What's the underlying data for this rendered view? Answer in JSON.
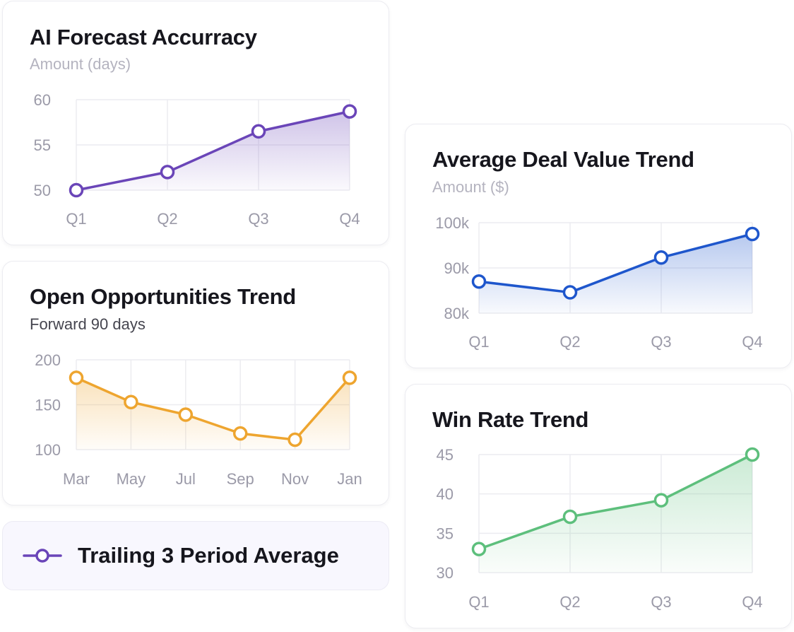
{
  "legend": {
    "label": "Trailing 3 Period Average",
    "color": "#6a45b8"
  },
  "chart_data": [
    {
      "id": "forecast",
      "type": "area",
      "title": "AI Forecast Accurracy",
      "subtitle": "Amount (days)",
      "subtitle_color": "#b4b3bf",
      "categories": [
        "Q1",
        "Q2",
        "Q3",
        "Q4"
      ],
      "values": [
        50,
        52,
        56.5,
        58.7
      ],
      "ylim": [
        50,
        60
      ],
      "yticks": [
        50,
        55,
        60
      ],
      "ytick_labels": [
        "50",
        "55",
        "60"
      ],
      "color": "#6a45b8",
      "grid": true
    },
    {
      "id": "opps",
      "type": "area",
      "title": "Open Opportunities Trend",
      "subtitle": "Forward 90 days",
      "subtitle_color": "#45454f",
      "categories": [
        "Mar",
        "May",
        "Jul",
        "Sep",
        "Nov",
        "Jan"
      ],
      "values": [
        180,
        153,
        139,
        118,
        111,
        180
      ],
      "ylim": [
        100,
        200
      ],
      "yticks": [
        100,
        150,
        200
      ],
      "ytick_labels": [
        "100",
        "150",
        "200"
      ],
      "color": "#eea52f",
      "grid": true
    },
    {
      "id": "deal",
      "type": "area",
      "title": "Average Deal Value Trend",
      "subtitle": "Amount ($)",
      "subtitle_color": "#b4b3bf",
      "categories": [
        "Q1",
        "Q2",
        "Q3",
        "Q4"
      ],
      "values": [
        87,
        84.6,
        92.3,
        97.5
      ],
      "ylim": [
        80,
        100
      ],
      "yticks": [
        80,
        90,
        100
      ],
      "ytick_labels": [
        "80k",
        "90k",
        "100k"
      ],
      "color": "#1e56cc",
      "grid": true
    },
    {
      "id": "win",
      "type": "area",
      "title": "Win Rate Trend",
      "subtitle": "",
      "subtitle_color": "#b4b3bf",
      "categories": [
        "Q1",
        "Q2",
        "Q3",
        "Q4"
      ],
      "values": [
        33,
        37.1,
        39.2,
        45
      ],
      "ylim": [
        30,
        45
      ],
      "yticks": [
        30,
        35,
        40,
        45
      ],
      "ytick_labels": [
        "30",
        "35",
        "40",
        "45"
      ],
      "color": "#5dbf7c",
      "grid": true
    }
  ]
}
